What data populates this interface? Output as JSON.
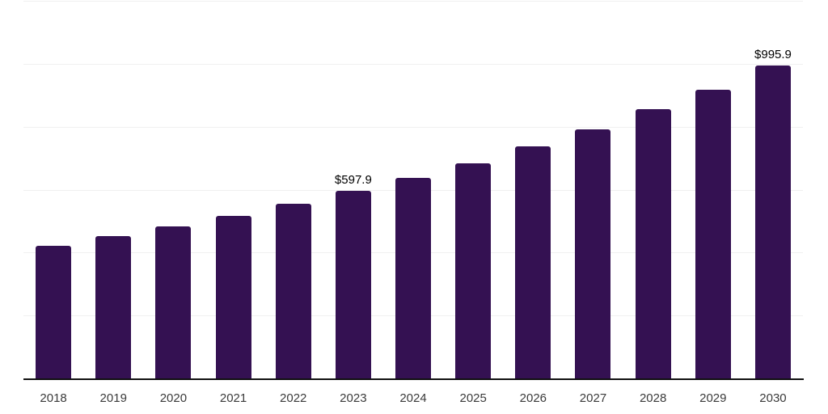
{
  "chart_data": {
    "type": "bar",
    "title": "",
    "xlabel": "",
    "ylabel": "",
    "categories": [
      "2018",
      "2019",
      "2020",
      "2021",
      "2022",
      "2023",
      "2024",
      "2025",
      "2026",
      "2027",
      "2028",
      "2029",
      "2030"
    ],
    "values": [
      425,
      455,
      485,
      520,
      558,
      597.9,
      641,
      687,
      739,
      795,
      858,
      921,
      995.9
    ],
    "data_labels": [
      "",
      "",
      "",
      "",
      "",
      "$597.9",
      "",
      "",
      "",
      "",
      "",
      "",
      "$995.9"
    ],
    "ylim": [
      0,
      1200
    ],
    "gridline_step": 200,
    "grid_on": true,
    "legend": "none",
    "colors": {
      "bar": "#341152",
      "grid": "#f0f0f0",
      "axis": "#111111",
      "tick_label": "#3a3a3a",
      "data_label": "#000000",
      "background": "#ffffff"
    }
  }
}
